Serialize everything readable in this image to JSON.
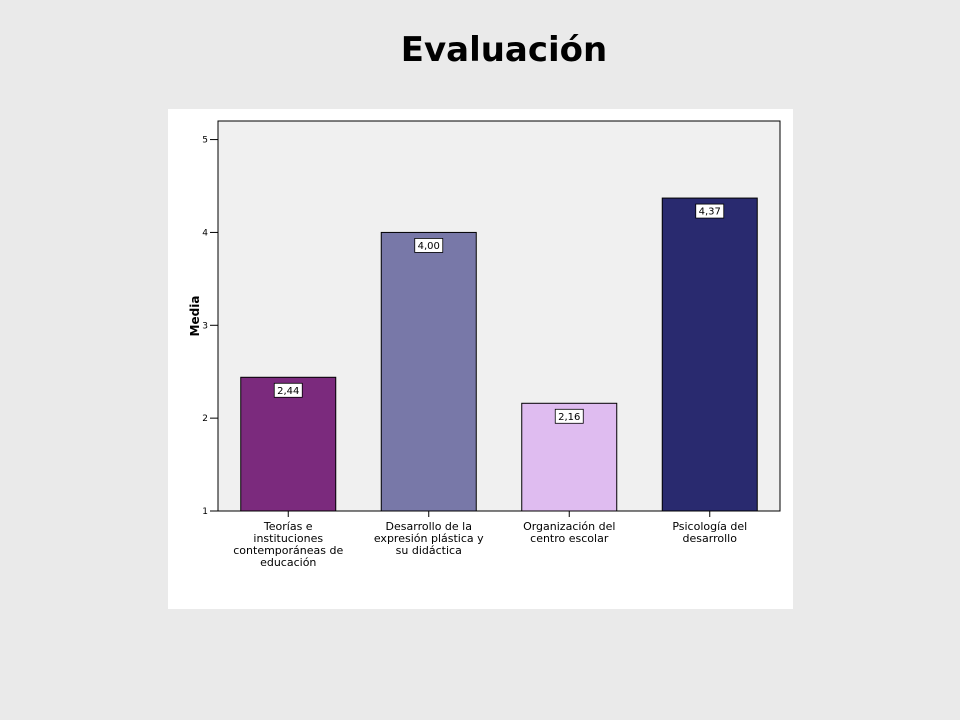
{
  "slide": {
    "title": "Evaluación"
  },
  "chart_data": {
    "type": "bar",
    "title": "",
    "xlabel": "",
    "ylabel": "Media",
    "ylim": [
      1,
      5.2
    ],
    "yticks": [
      1,
      2,
      3,
      4,
      5
    ],
    "grid": false,
    "legend": "none",
    "categories": [
      [
        "Teorías e",
        "instituciones",
        "contemporáneas de",
        "educación"
      ],
      [
        "Desarrollo de la",
        "expresión plástica y",
        "su didáctica"
      ],
      [
        "Organización del",
        "centro escolar"
      ],
      [
        "Psicología del",
        "desarrollo"
      ]
    ],
    "values": [
      2.44,
      4.0,
      2.16,
      4.37
    ],
    "value_labels": [
      "2,44",
      "4,00",
      "2,16",
      "4,37"
    ],
    "colors": [
      "#7b2a7d",
      "#7878a8",
      "#dfbcf0",
      "#292a6f"
    ],
    "plot_background": "#f0f0f0"
  }
}
